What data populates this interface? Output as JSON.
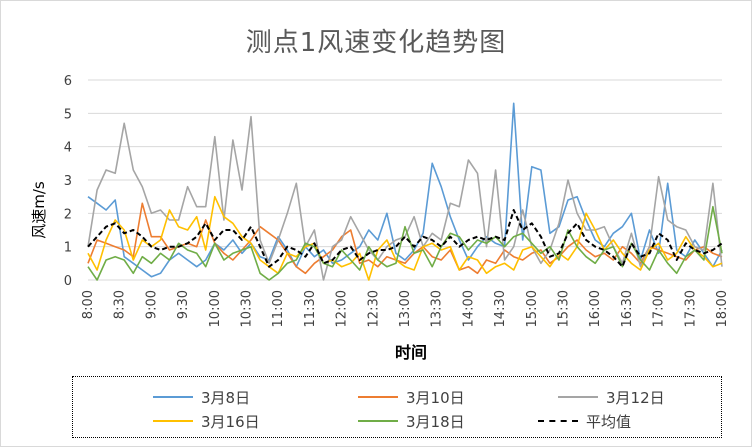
{
  "chart_data": {
    "type": "line",
    "title": "测点1风速变化趋势图",
    "xlabel": "时间",
    "ylabel": "风速m/s",
    "ylim": [
      0,
      6
    ],
    "yticks": [
      "0",
      "1",
      "2",
      "3",
      "4",
      "5",
      "6"
    ],
    "xticks": [
      "8:00",
      "8:30",
      "9:00",
      "9:30",
      "10:00",
      "10:30",
      "11:00",
      "11:30",
      "12:00",
      "12:30",
      "13:00",
      "13:30",
      "14:00",
      "14:30",
      "15:00",
      "15:30",
      "16:00",
      "16:30",
      "17:00",
      "17:30",
      "18:00"
    ],
    "grid": true,
    "legend_position": "bottom",
    "series": [
      {
        "name": "3月8日",
        "color": "#5b9bd5",
        "dash": "solid",
        "values": [
          2.5,
          2.3,
          2.1,
          2.4,
          0.7,
          0.5,
          0.3,
          0.1,
          0.2,
          0.6,
          0.8,
          0.6,
          0.4,
          0.6,
          1.1,
          0.9,
          1.2,
          0.8,
          1.1,
          0.7,
          0.6,
          1.3,
          0.9,
          0.4,
          1.0,
          0.7,
          0.9,
          0.5,
          0.6,
          0.8,
          1.0,
          1.5,
          1.2,
          2.0,
          0.8,
          0.6,
          0.9,
          1.4,
          3.5,
          2.8,
          1.9,
          1.2,
          0.6,
          1.0,
          1.3,
          1.1,
          1.0,
          5.3,
          1.2,
          3.4,
          3.3,
          1.4,
          1.6,
          2.4,
          2.5,
          1.8,
          1.2,
          1.0,
          1.4,
          1.6,
          2.0,
          0.6,
          1.5,
          0.8,
          2.9,
          0.9,
          0.7,
          1.2,
          0.8,
          0.4,
          0.9
        ]
      },
      {
        "name": "3月10日",
        "color": "#ed7d31",
        "dash": "solid",
        "values": [
          0.5,
          1.2,
          1.1,
          1.0,
          0.9,
          0.7,
          2.3,
          1.3,
          1.3,
          0.9,
          1.0,
          1.1,
          1.0,
          1.8,
          1.1,
          0.8,
          0.6,
          0.9,
          1.2,
          1.6,
          1.4,
          1.2,
          0.8,
          0.4,
          0.2,
          0.5,
          0.7,
          0.9,
          1.3,
          1.5,
          0.5,
          0.6,
          0.4,
          0.7,
          0.6,
          0.5,
          0.8,
          1.0,
          0.7,
          0.6,
          0.9,
          0.3,
          0.4,
          0.2,
          0.6,
          0.5,
          0.9,
          0.7,
          0.6,
          0.8,
          0.9,
          0.5,
          0.7,
          1.0,
          1.2,
          0.9,
          0.7,
          0.8,
          0.6,
          1.0,
          0.8,
          0.5,
          1.0,
          0.9,
          0.8,
          0.7,
          0.6,
          0.9,
          1.0,
          0.8,
          0.7
        ]
      },
      {
        "name": "3月12日",
        "color": "#a5a5a5",
        "dash": "solid",
        "values": [
          1.0,
          2.7,
          3.3,
          3.2,
          4.7,
          3.3,
          2.8,
          2.0,
          2.1,
          1.8,
          1.8,
          2.8,
          2.2,
          2.2,
          4.3,
          1.8,
          4.2,
          2.7,
          4.9,
          1.2,
          0.5,
          1.2,
          2.0,
          2.9,
          1.0,
          1.5,
          0.0,
          1.0,
          1.2,
          1.9,
          1.4,
          0.9,
          0.6,
          1.0,
          1.2,
          1.3,
          1.9,
          1.0,
          1.4,
          1.2,
          2.3,
          2.2,
          3.6,
          3.2,
          1.0,
          3.3,
          0.6,
          1.0,
          2.1,
          1.0,
          0.5,
          0.9,
          1.7,
          3.0,
          2.0,
          1.5,
          1.5,
          1.6,
          1.0,
          0.5,
          1.4,
          0.4,
          1.0,
          3.1,
          1.8,
          1.6,
          1.5,
          1.0,
          0.9,
          2.9,
          0.4
        ]
      },
      {
        "name": "3月16日",
        "color": "#ffc000",
        "dash": "solid",
        "values": [
          0.8,
          0.3,
          1.2,
          1.8,
          1.5,
          0.6,
          1.2,
          1.0,
          1.2,
          2.1,
          1.6,
          1.5,
          1.9,
          0.9,
          2.5,
          1.9,
          1.7,
          1.3,
          1.1,
          0.6,
          0.4,
          0.2,
          0.8,
          0.7,
          1.0,
          1.1,
          0.5,
          0.6,
          0.4,
          0.5,
          0.8,
          0.0,
          0.9,
          1.2,
          0.6,
          0.4,
          0.3,
          1.0,
          1.1,
          0.9,
          1.0,
          0.3,
          0.7,
          0.6,
          0.2,
          0.4,
          0.5,
          0.3,
          0.9,
          1.0,
          0.7,
          0.4,
          0.8,
          0.6,
          1.0,
          2.0,
          1.5,
          0.9,
          1.2,
          0.8,
          0.5,
          0.3,
          0.9,
          1.1,
          0.6,
          0.8,
          1.3,
          0.9,
          0.7,
          0.4,
          0.5
        ]
      },
      {
        "name": "3月18日",
        "color": "#70ad47",
        "dash": "solid",
        "values": [
          0.4,
          0.0,
          0.6,
          0.7,
          0.6,
          0.2,
          0.7,
          0.5,
          0.8,
          0.6,
          1.1,
          0.9,
          0.8,
          0.4,
          1.1,
          0.6,
          0.8,
          0.9,
          1.0,
          0.2,
          0.0,
          0.2,
          0.5,
          0.6,
          1.1,
          1.0,
          0.5,
          0.4,
          0.9,
          0.6,
          0.3,
          1.0,
          0.6,
          0.4,
          0.5,
          1.6,
          0.8,
          0.9,
          0.4,
          1.0,
          1.4,
          1.3,
          0.9,
          1.2,
          1.1,
          1.3,
          1.0,
          1.3,
          1.4,
          1.1,
          0.8,
          1.0,
          0.6,
          1.5,
          1.0,
          0.7,
          0.5,
          0.9,
          1.0,
          0.4,
          1.1,
          0.6,
          0.3,
          0.9,
          0.5,
          0.2,
          0.7,
          0.9,
          0.6,
          2.2,
          0.8
        ]
      },
      {
        "name": "平均值",
        "color": "#000000",
        "dash": "dashed",
        "values": [
          1.0,
          1.3,
          1.6,
          1.7,
          1.4,
          1.5,
          1.3,
          1.0,
          0.9,
          1.0,
          1.0,
          1.1,
          1.3,
          1.7,
          1.2,
          1.5,
          1.5,
          1.2,
          1.6,
          1.0,
          0.4,
          0.6,
          1.0,
          0.9,
          0.7,
          1.1,
          0.5,
          0.6,
          0.9,
          1.0,
          0.6,
          0.8,
          0.9,
          0.9,
          1.0,
          1.3,
          1.0,
          1.3,
          1.2,
          1.0,
          1.3,
          1.0,
          1.2,
          1.3,
          1.2,
          1.3,
          1.2,
          2.1,
          1.5,
          1.7,
          1.3,
          0.7,
          0.8,
          1.4,
          1.7,
          1.2,
          1.0,
          0.9,
          0.7,
          0.4,
          1.1,
          0.7,
          0.8,
          1.4,
          1.2,
          0.6,
          1.1,
          0.9,
          0.8,
          0.9,
          1.1
        ]
      }
    ]
  }
}
